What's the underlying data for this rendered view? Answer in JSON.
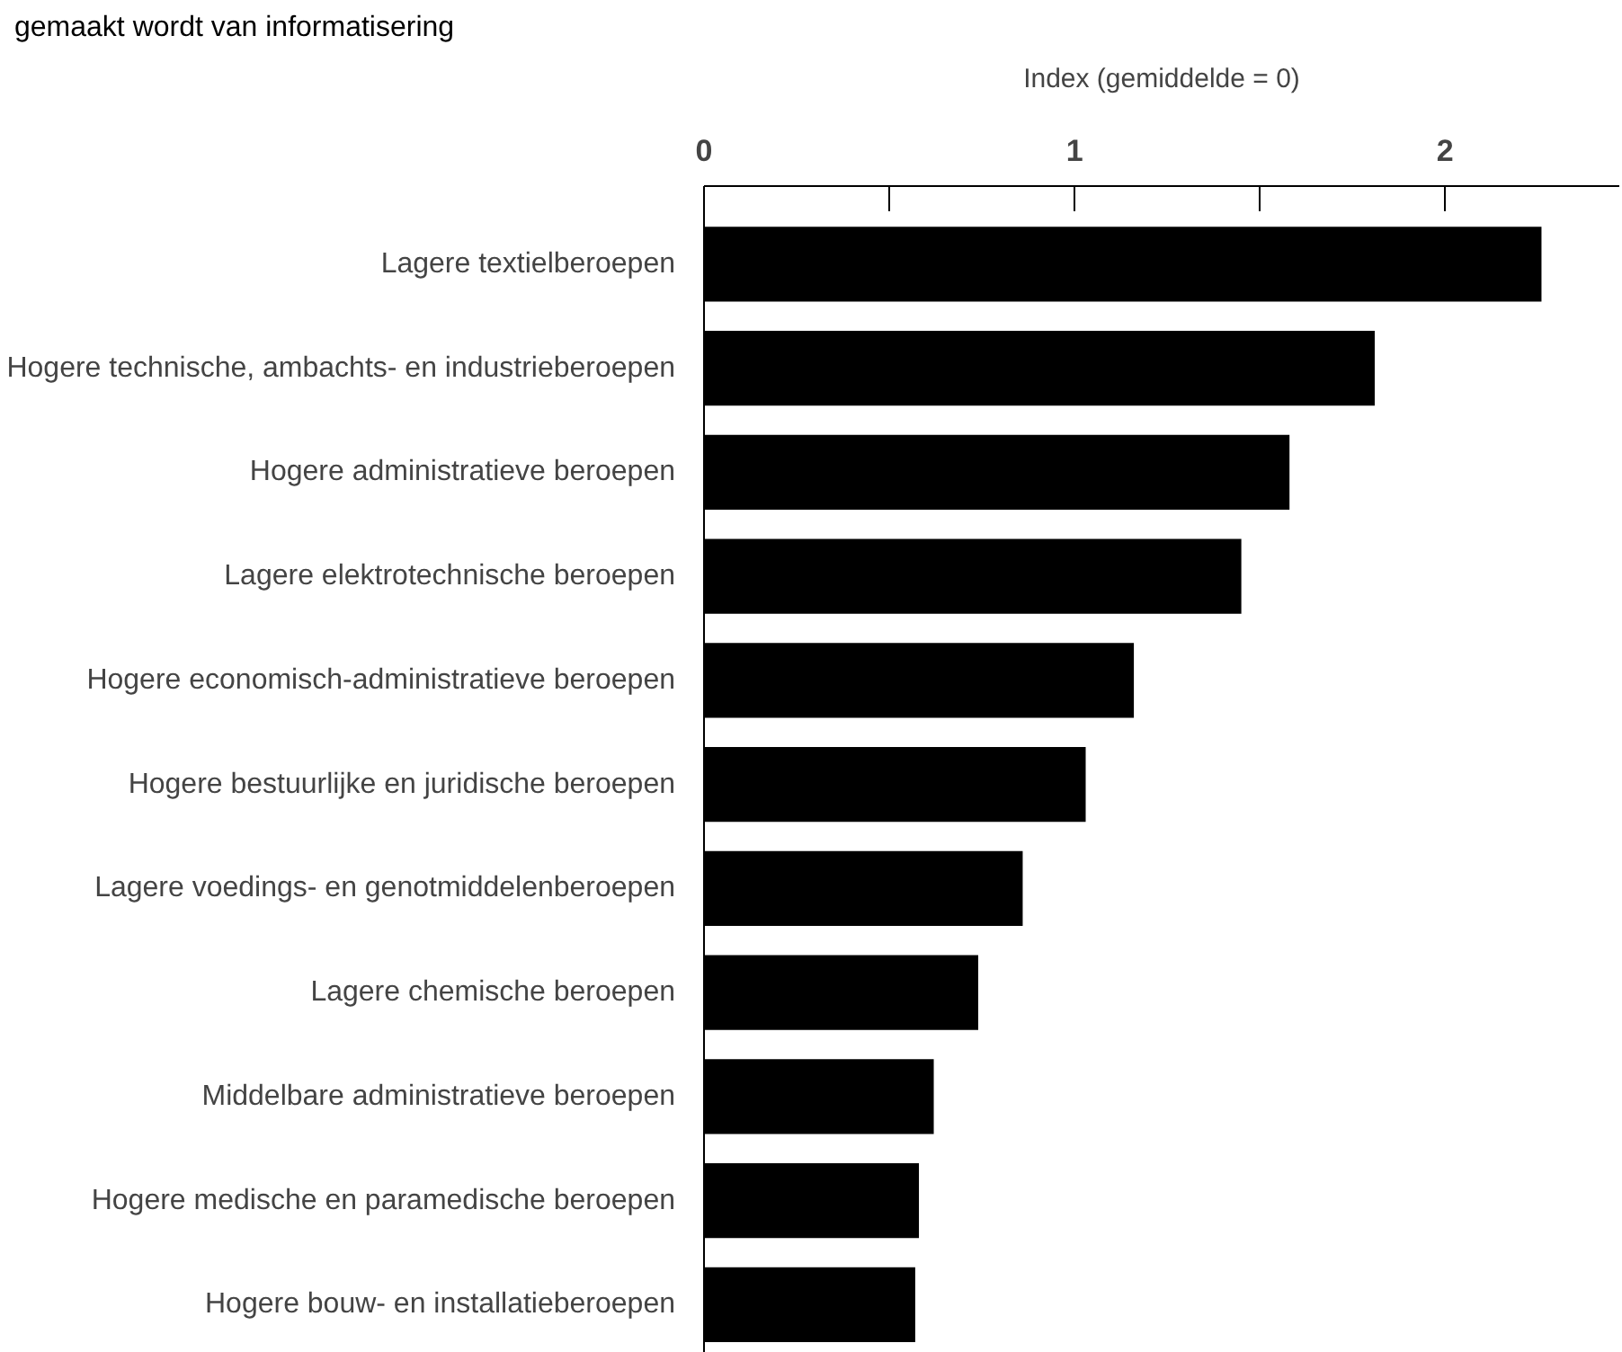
{
  "chart_data": {
    "type": "bar",
    "orientation": "horizontal",
    "title": "gemaakt wordt van informatisering",
    "xlabel": "Index (gemiddelde = 0)",
    "categories": [
      "Lagere textielberoepen",
      "Hogere technische, ambachts- en industrieberoepen",
      "Hogere administratieve beroepen",
      "Lagere elektrotechnische beroepen",
      "Hogere economisch-administratieve beroepen",
      "Hogere bestuurlijke en juridische beroepen",
      "Lagere voedings- en genotmiddelenberoepen",
      "Lagere chemische beroepen",
      "Middelbare administratieve beroepen",
      "Hogere medische en paramedische beroepen",
      "Hogere bouw- en installatieberoepen"
    ],
    "values": [
      2.26,
      1.81,
      1.58,
      1.45,
      1.16,
      1.03,
      0.86,
      0.74,
      0.62,
      0.58,
      0.57
    ],
    "color": "#000000",
    "xlim": [
      0,
      2.47
    ],
    "xticks": [
      0,
      {
        "value": 0.5,
        "label": null
      },
      1,
      {
        "value": 1.5,
        "label": null
      },
      2
    ],
    "grid": false
  }
}
